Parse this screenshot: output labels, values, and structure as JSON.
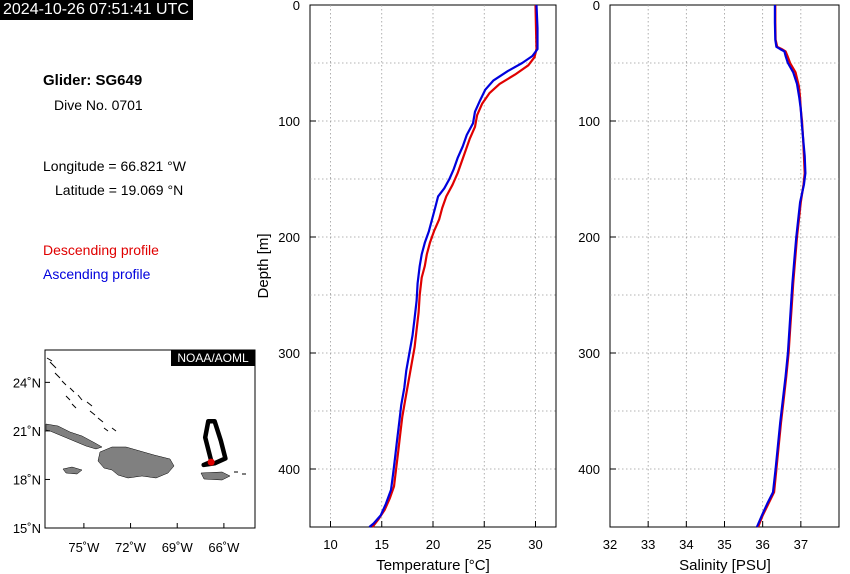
{
  "header": {
    "timestamp": "2024-10-26 07:51:41 UTC"
  },
  "info": {
    "glider": "Glider: SG649",
    "dive": "Dive No. 0701",
    "longitude": "Longitude = 66.821 °W",
    "latitude": "Latitude = 19.069 °N"
  },
  "legend": {
    "descending": "Descending profile",
    "ascending": "Ascending profile"
  },
  "colors": {
    "descending": "#e00000",
    "ascending": "#0000dd",
    "land": "#808080",
    "track": "#000000",
    "position": "#e00000"
  },
  "map": {
    "credit": "NOAA/AOML",
    "lon_ticks": [
      "75˚W",
      "72˚W",
      "69˚W",
      "66˚W"
    ],
    "lat_ticks": [
      "24˚N",
      "21˚N",
      "18˚N",
      "15˚N"
    ],
    "lon_range": [
      -77.5,
      -64
    ],
    "lat_range": [
      15,
      26
    ],
    "track": [
      [
        -66.8,
        19.1
      ],
      [
        -67.2,
        20.6
      ],
      [
        -67.0,
        21.6
      ],
      [
        -66.6,
        21.6
      ],
      [
        -66.2,
        20.4
      ],
      [
        -65.9,
        19.3
      ],
      [
        -66.6,
        19.0
      ],
      [
        -67.3,
        18.9
      ],
      [
        -66.8,
        19.1
      ]
    ],
    "position": [
      -66.82,
      19.07
    ]
  },
  "chart_data": [
    {
      "type": "line",
      "xlabel": "Temperature [°C]",
      "ylabel": "Depth [m]",
      "xlim": [
        8,
        32
      ],
      "ylim": [
        450,
        0
      ],
      "x_ticks": [
        10,
        15,
        20,
        25,
        30
      ],
      "y_ticks": [
        0,
        100,
        200,
        300,
        400
      ],
      "grid": true,
      "series": [
        {
          "name": "Descending profile",
          "points": [
            [
              30.0,
              0
            ],
            [
              30.05,
              20
            ],
            [
              30.1,
              38
            ],
            [
              29.9,
              45
            ],
            [
              29.3,
              52
            ],
            [
              28.0,
              60
            ],
            [
              26.5,
              68
            ],
            [
              25.5,
              76
            ],
            [
              24.8,
              85
            ],
            [
              24.3,
              95
            ],
            [
              24.1,
              105
            ],
            [
              23.6,
              115
            ],
            [
              23.2,
              125
            ],
            [
              22.8,
              135
            ],
            [
              22.4,
              145
            ],
            [
              21.9,
              155
            ],
            [
              21.3,
              165
            ],
            [
              20.9,
              175
            ],
            [
              20.6,
              185
            ],
            [
              20.1,
              195
            ],
            [
              19.7,
              205
            ],
            [
              19.4,
              215
            ],
            [
              19.2,
              225
            ],
            [
              18.9,
              235
            ],
            [
              18.7,
              250
            ],
            [
              18.6,
              265
            ],
            [
              18.4,
              280
            ],
            [
              18.2,
              295
            ],
            [
              17.9,
              310
            ],
            [
              17.6,
              325
            ],
            [
              17.3,
              340
            ],
            [
              17.0,
              355
            ],
            [
              16.8,
              370
            ],
            [
              16.6,
              385
            ],
            [
              16.4,
              400
            ],
            [
              16.2,
              415
            ],
            [
              15.8,
              425
            ],
            [
              15.3,
              435
            ],
            [
              14.7,
              443
            ],
            [
              14.1,
              450
            ]
          ]
        },
        {
          "name": "Ascending profile",
          "points": [
            [
              30.1,
              0
            ],
            [
              30.2,
              20
            ],
            [
              30.2,
              38
            ],
            [
              29.7,
              44
            ],
            [
              28.7,
              50
            ],
            [
              27.3,
              57
            ],
            [
              25.9,
              65
            ],
            [
              25.1,
              73
            ],
            [
              24.6,
              82
            ],
            [
              24.1,
              92
            ],
            [
              23.9,
              102
            ],
            [
              23.3,
              112
            ],
            [
              22.9,
              122
            ],
            [
              22.4,
              132
            ],
            [
              22.0,
              142
            ],
            [
              21.6,
              150
            ],
            [
              21.1,
              158
            ],
            [
              20.5,
              165
            ],
            [
              20.2,
              175
            ],
            [
              19.9,
              185
            ],
            [
              19.6,
              195
            ],
            [
              19.2,
              205
            ],
            [
              18.9,
              215
            ],
            [
              18.7,
              225
            ],
            [
              18.5,
              240
            ],
            [
              18.4,
              255
            ],
            [
              18.2,
              270
            ],
            [
              18.0,
              285
            ],
            [
              17.7,
              300
            ],
            [
              17.4,
              315
            ],
            [
              17.2,
              330
            ],
            [
              16.9,
              345
            ],
            [
              16.7,
              360
            ],
            [
              16.5,
              375
            ],
            [
              16.3,
              390
            ],
            [
              16.1,
              405
            ],
            [
              15.9,
              418
            ],
            [
              15.4,
              430
            ],
            [
              14.9,
              440
            ],
            [
              14.2,
              447
            ],
            [
              13.8,
              450
            ]
          ]
        }
      ]
    },
    {
      "type": "line",
      "xlabel": "Salinity [PSU]",
      "xlim": [
        32,
        38
      ],
      "ylim": [
        450,
        0
      ],
      "x_ticks": [
        32,
        33,
        34,
        35,
        36,
        37
      ],
      "y_ticks": [
        0,
        100,
        200,
        300,
        400
      ],
      "grid": true,
      "series": [
        {
          "name": "Descending profile",
          "points": [
            [
              36.33,
              0
            ],
            [
              36.33,
              15
            ],
            [
              36.34,
              30
            ],
            [
              36.38,
              36
            ],
            [
              36.5,
              38
            ],
            [
              36.6,
              40
            ],
            [
              36.65,
              44
            ],
            [
              36.72,
              50
            ],
            [
              36.86,
              58
            ],
            [
              36.95,
              70
            ],
            [
              36.98,
              80
            ],
            [
              37.0,
              90
            ],
            [
              37.03,
              100
            ],
            [
              37.06,
              115
            ],
            [
              37.08,
              130
            ],
            [
              37.1,
              145
            ],
            [
              37.07,
              155
            ],
            [
              37.0,
              170
            ],
            [
              36.95,
              185
            ],
            [
              36.9,
              200
            ],
            [
              36.85,
              220
            ],
            [
              36.8,
              240
            ],
            [
              36.76,
              260
            ],
            [
              36.72,
              280
            ],
            [
              36.68,
              300
            ],
            [
              36.62,
              320
            ],
            [
              36.55,
              340
            ],
            [
              36.48,
              360
            ],
            [
              36.42,
              380
            ],
            [
              36.36,
              400
            ],
            [
              36.3,
              420
            ],
            [
              36.15,
              430
            ],
            [
              36.0,
              440
            ],
            [
              35.88,
              450
            ]
          ]
        },
        {
          "name": "Ascending profile",
          "points": [
            [
              36.32,
              0
            ],
            [
              36.32,
              15
            ],
            [
              36.33,
              30
            ],
            [
              36.36,
              36
            ],
            [
              36.46,
              38
            ],
            [
              36.57,
              40
            ],
            [
              36.6,
              44
            ],
            [
              36.66,
              50
            ],
            [
              36.8,
              58
            ],
            [
              36.9,
              68
            ],
            [
              36.96,
              80
            ],
            [
              37.0,
              90
            ],
            [
              37.02,
              100
            ],
            [
              37.06,
              115
            ],
            [
              37.1,
              130
            ],
            [
              37.12,
              145
            ],
            [
              37.08,
              155
            ],
            [
              36.98,
              170
            ],
            [
              36.93,
              185
            ],
            [
              36.88,
              200
            ],
            [
              36.83,
              220
            ],
            [
              36.78,
              240
            ],
            [
              36.74,
              260
            ],
            [
              36.7,
              280
            ],
            [
              36.66,
              300
            ],
            [
              36.6,
              320
            ],
            [
              36.53,
              340
            ],
            [
              36.46,
              360
            ],
            [
              36.4,
              380
            ],
            [
              36.34,
              400
            ],
            [
              36.27,
              420
            ],
            [
              36.12,
              430
            ],
            [
              35.98,
              440
            ],
            [
              35.85,
              450
            ]
          ]
        }
      ]
    }
  ]
}
